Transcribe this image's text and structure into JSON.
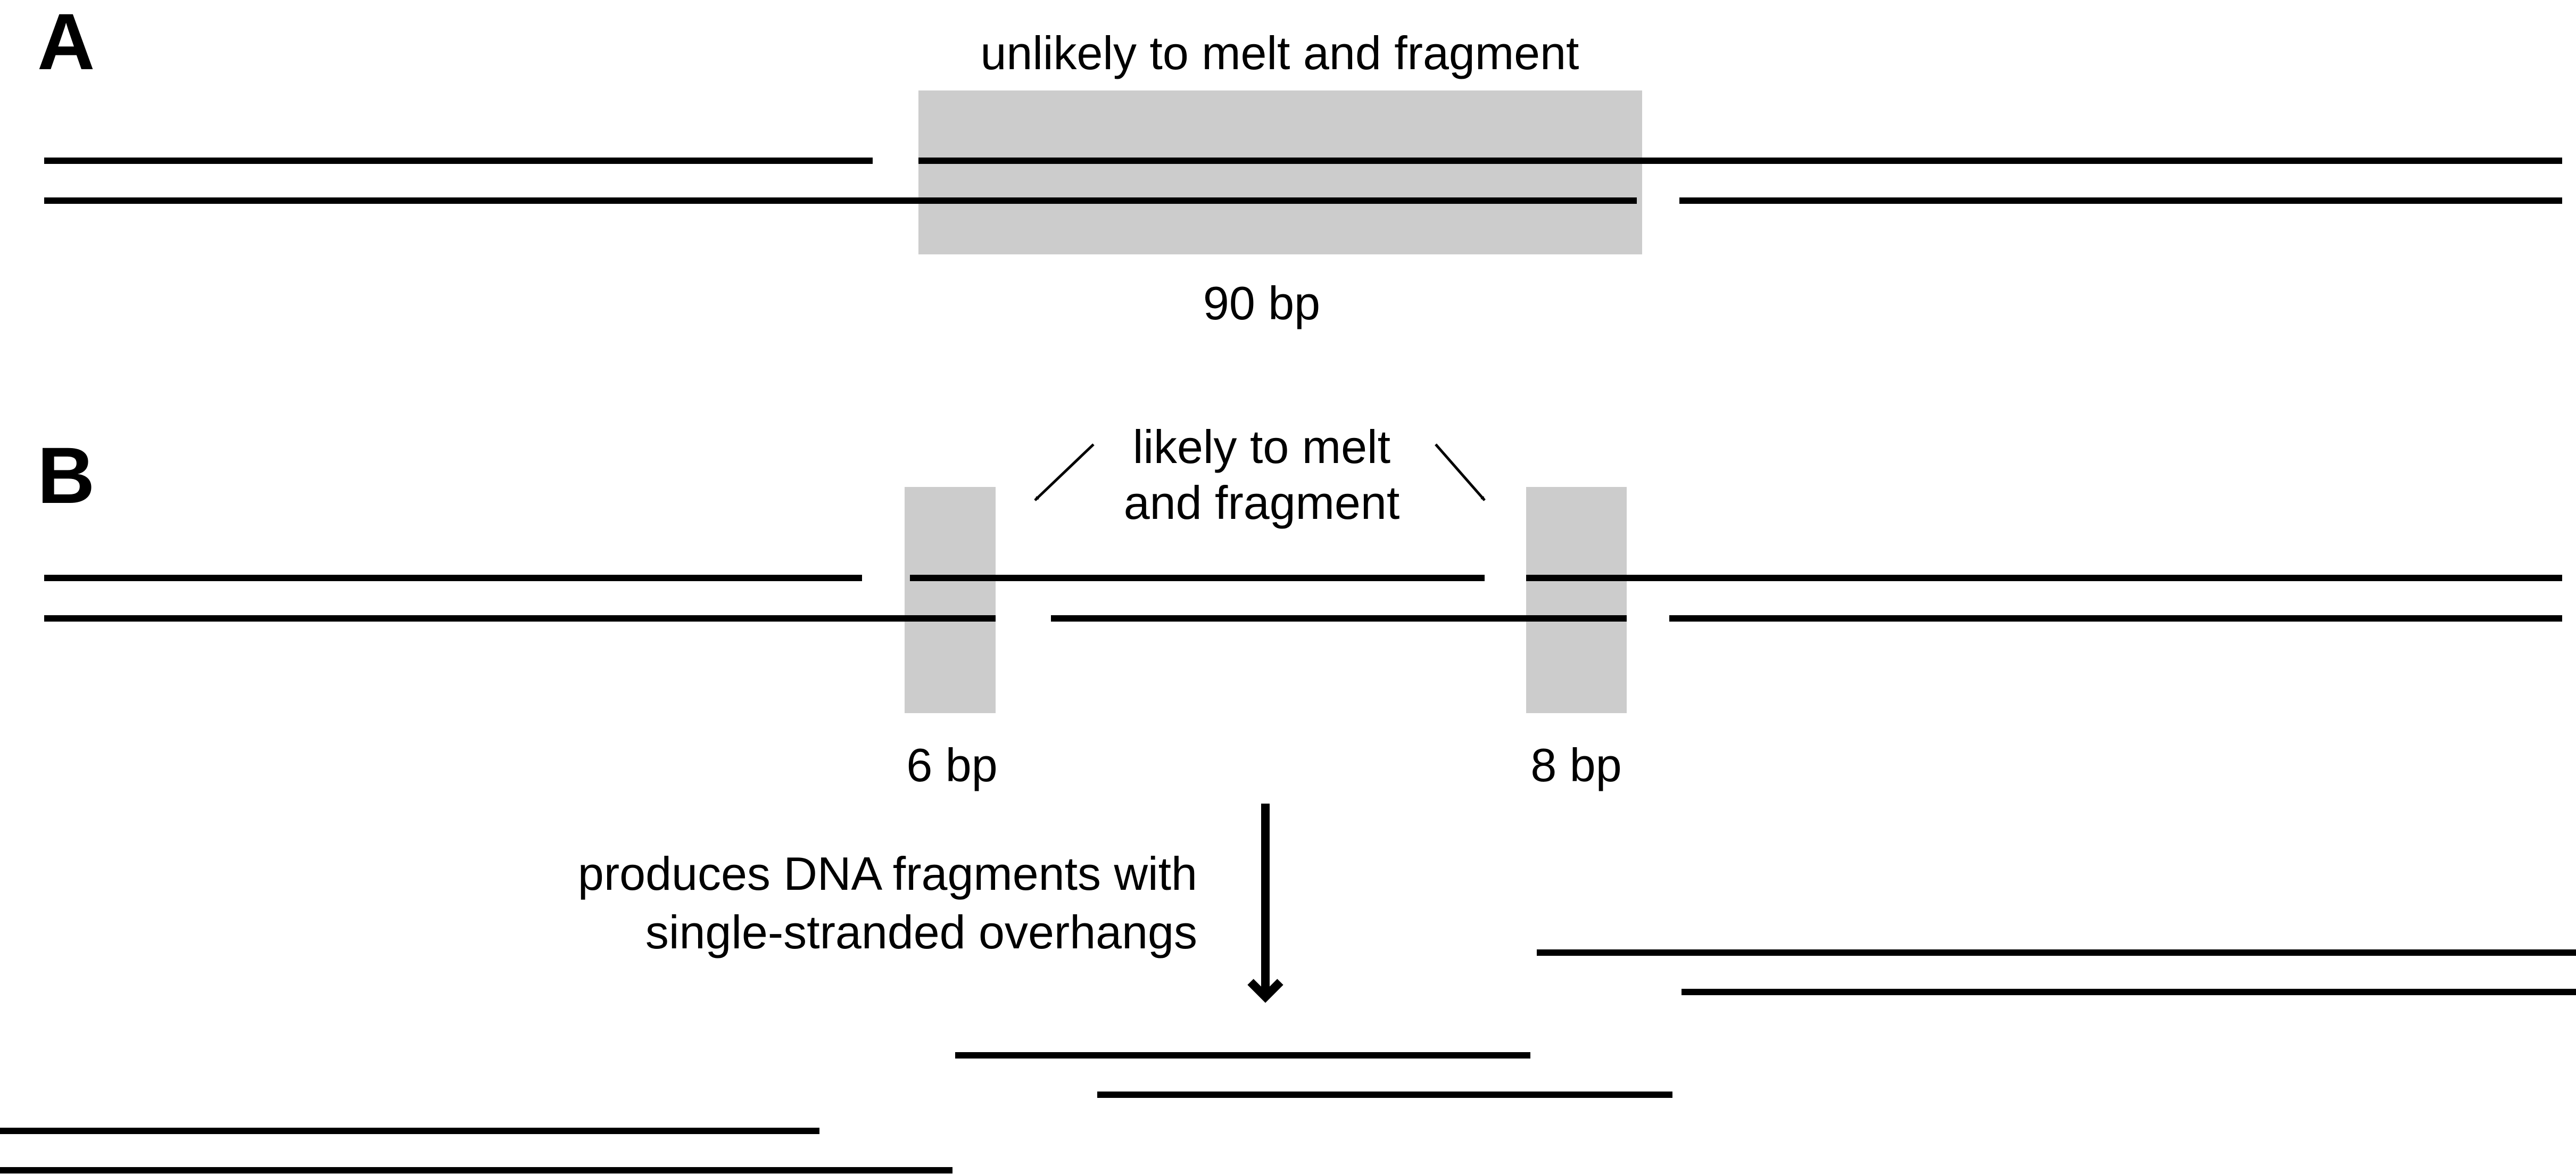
{
  "panels": {
    "a": {
      "letter": "A",
      "caption": "unlikely to melt and fragment",
      "size_label": "90 bp"
    },
    "b": {
      "letter": "B",
      "caption_line1": "likely to melt",
      "caption_line2": "and fragment",
      "left_size_label": "6 bp",
      "right_size_label": "8 bp",
      "result_line1": "produces DNA fragments with",
      "result_line2": "single-stranded overhangs"
    }
  },
  "colors": {
    "strand": "#000000",
    "highlight": "#cccccc",
    "background": "#ffffff"
  }
}
